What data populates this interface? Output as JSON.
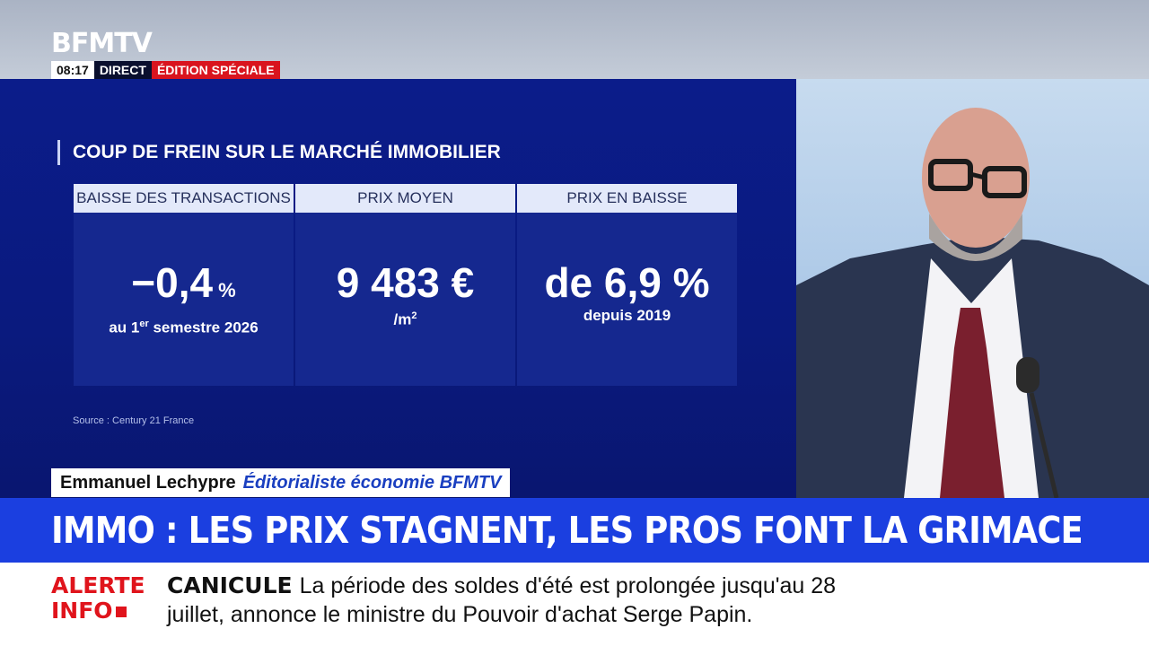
{
  "broadcast": {
    "logo": "BFMTV",
    "time": "08:17",
    "live_label": "DIRECT",
    "edition_label": "ÉDITION SPÉCIALE"
  },
  "infographic": {
    "title": "COUP DE FREIN SUR LE MARCHÉ IMMOBILIER",
    "cards": [
      {
        "header": "BAISSE DES TRANSACTIONS",
        "value": "−0,4",
        "unit": " %",
        "sub_pre": "au 1",
        "sub_sup": "er",
        "sub_post": " semestre 2026"
      },
      {
        "header": "PRIX MOYEN",
        "value": "9 483 €",
        "sub_pre": "/m",
        "sub_sup": "2",
        "sub_post": ""
      },
      {
        "header": "PRIX EN BAISSE",
        "value": "de 6,9 %",
        "sub": "depuis 2019"
      }
    ],
    "source": "Source : Century 21 France"
  },
  "lower_third": {
    "name": "Emmanuel Lechypre",
    "role": "Éditorialiste économie BFMTV"
  },
  "headline": "IMMO : LES PRIX STAGNENT, LES PROS FONT LA GRIMACE",
  "ticker": {
    "alert_line1": "ALERTE",
    "alert_line2": "INFO",
    "keyword": "CANICULE",
    "text": "La période des soldes d'été est prolongée jusqu'au 28 juillet, annonce le ministre du Pouvoir d'achat Serge Papin."
  },
  "colors": {
    "panel_blue": "#0b1c8a",
    "headline_blue": "#1b3fe0",
    "alert_red": "#e0141c",
    "edition_red": "#d9141e"
  }
}
